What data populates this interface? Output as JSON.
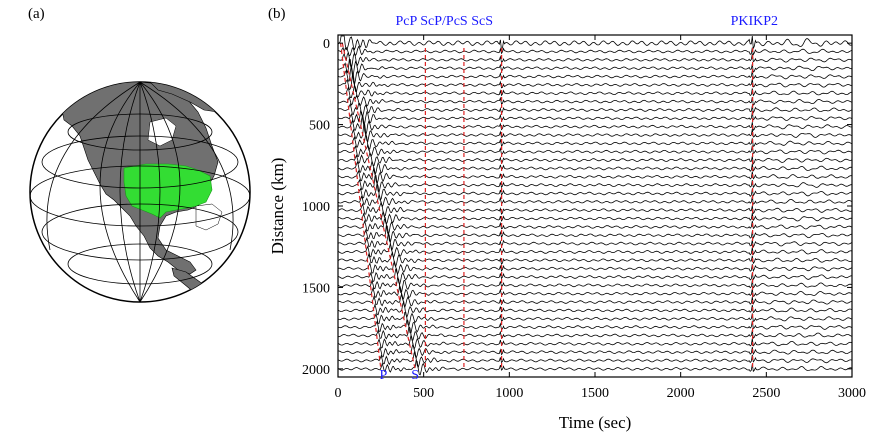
{
  "panel_a": {
    "label": "(a)"
  },
  "panel_b": {
    "label": "(b)"
  },
  "colors": {
    "highlight_region": "#33dd33",
    "phase_label": "#1a1aff",
    "arrival_line": "#dd2222",
    "land": "#707070"
  },
  "chart_data": {
    "type": "line",
    "xlabel": "Time (sec)",
    "ylabel": "Distance (km)",
    "xlim": [
      0,
      3000
    ],
    "ylim": [
      2050,
      -50
    ],
    "xticks": [
      "0",
      "500",
      "1000",
      "1500",
      "2000",
      "2500",
      "3000"
    ],
    "yticks": [
      "0",
      "500",
      "1000",
      "1500",
      "2000"
    ],
    "xtick_values": [
      0,
      500,
      1000,
      1500,
      2000,
      2500,
      3000
    ],
    "ytick_values": [
      0,
      500,
      1000,
      1500,
      2000
    ],
    "top_phase_labels": [
      {
        "text": "PcP ScP/PcS ScS",
        "time": 620
      },
      {
        "text": "PKIKP2",
        "time": 2430
      }
    ],
    "bottom_phase_labels": [
      {
        "text": "P",
        "time": 265
      },
      {
        "text": "S",
        "time": 450
      }
    ],
    "arrival_curves": [
      {
        "name": "P",
        "t0": 15,
        "t1": 250
      },
      {
        "name": "S",
        "t0": 25,
        "t1": 450
      }
    ],
    "vertical_arrivals": [
      {
        "name": "PcP",
        "time": 510
      },
      {
        "name": "ScP/PcS",
        "time": 735
      },
      {
        "name": "ScS",
        "time": 955
      },
      {
        "name": "PKIKP2",
        "time": 2420
      }
    ]
  }
}
